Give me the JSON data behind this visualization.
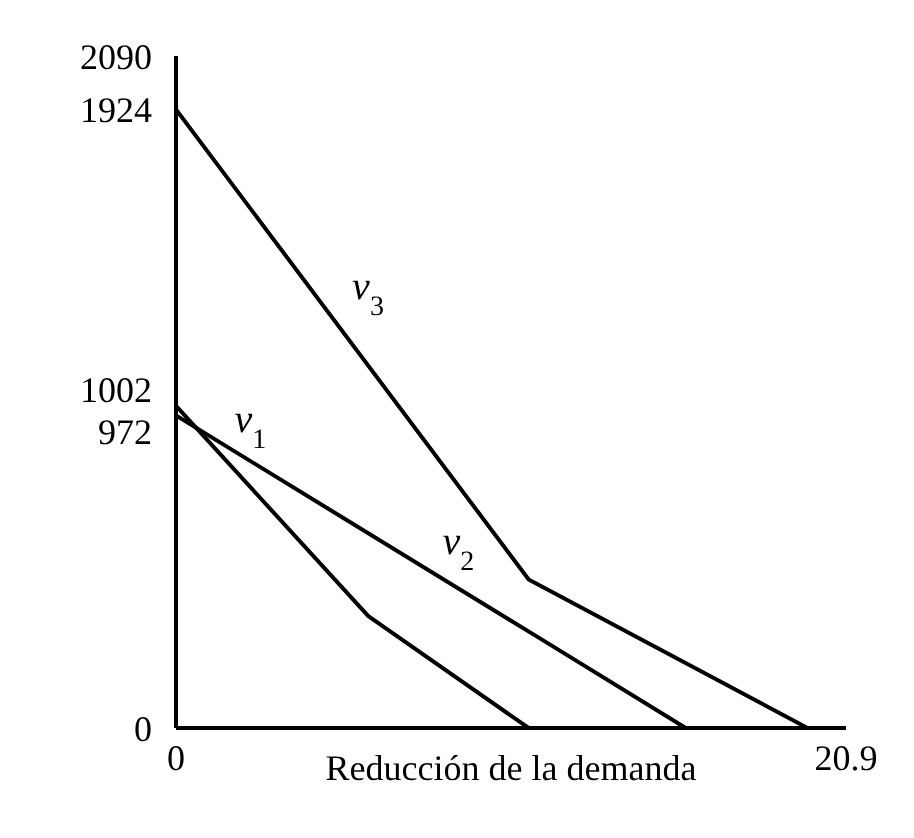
{
  "chart_data": {
    "type": "line",
    "xlabel": "Reducción de la demanda",
    "xlim": [
      0,
      20.9
    ],
    "xticks": [
      0,
      20.9
    ],
    "ylim": [
      0,
      2090
    ],
    "yticks": [
      0,
      972,
      1002,
      1924,
      2090
    ],
    "grid": false,
    "legend": false,
    "marker": "none",
    "series": [
      {
        "name": "v$_{1}$",
        "color": "#000000",
        "x": [
          0,
          6.0,
          11.0
        ],
        "values": [
          1002,
          348,
          0
        ]
      },
      {
        "name": "v$_{2}$",
        "color": "#000000",
        "x": [
          0,
          11.2,
          15.9
        ],
        "values": [
          972,
          288,
          0
        ]
      },
      {
        "name": "v$_{3}$",
        "color": "#000000",
        "x": [
          0,
          11.0,
          19.7
        ],
        "values": [
          1924,
          462,
          0
        ]
      }
    ]
  }
}
